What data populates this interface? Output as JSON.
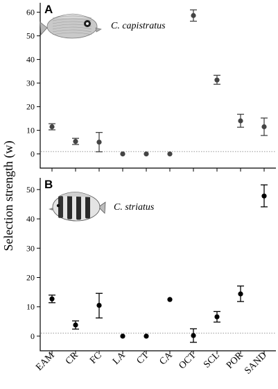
{
  "figure": {
    "ylabel": "Selection strength (w)"
  },
  "colors": {
    "panel_a_marker": "#444444",
    "panel_b_marker": "#000000"
  },
  "chart_data": [
    {
      "type": "scatter",
      "panel_label": "A",
      "species": "C. capistratus",
      "icon": "four-eye-butterflyfish-icon",
      "categories": [
        "EAM",
        "CR",
        "FC",
        "LA",
        "CT",
        "CA",
        "OCT",
        "SCL",
        "POR",
        "SAND"
      ],
      "values": [
        11.5,
        5.3,
        5.0,
        0,
        0,
        0,
        58.6,
        31.3,
        14.0,
        11.5
      ],
      "err_low": [
        10.2,
        4.0,
        0.9,
        null,
        null,
        null,
        56.2,
        29.5,
        11.3,
        7.8
      ],
      "err_high": [
        12.8,
        6.6,
        9.1,
        null,
        null,
        null,
        61.0,
        33.3,
        16.8,
        15.2
      ],
      "reference_line": 1,
      "yticks": [
        0,
        10,
        20,
        30,
        40,
        50,
        60
      ],
      "ylim": [
        -6,
        64
      ]
    },
    {
      "type": "scatter",
      "panel_label": "B",
      "species": "C. striatus",
      "icon": "banded-butterflyfish-icon",
      "categories": [
        "EAM",
        "CR",
        "FC",
        "LA",
        "CT",
        "CA",
        "OCT",
        "SCL",
        "POR",
        "SAND"
      ],
      "values": [
        12.7,
        3.8,
        10.5,
        0,
        0,
        12.5,
        0.2,
        6.6,
        14.4,
        47.8
      ],
      "err_low": [
        11.4,
        2.4,
        6.2,
        null,
        null,
        null,
        -2.1,
        4.8,
        11.8,
        44.1
      ],
      "err_high": [
        14.0,
        5.2,
        14.6,
        null,
        null,
        null,
        2.5,
        8.4,
        17.1,
        51.6
      ],
      "reference_line": 1,
      "yticks": [
        0,
        10,
        20,
        30,
        40,
        50
      ],
      "ylim": [
        -5,
        54
      ]
    }
  ]
}
